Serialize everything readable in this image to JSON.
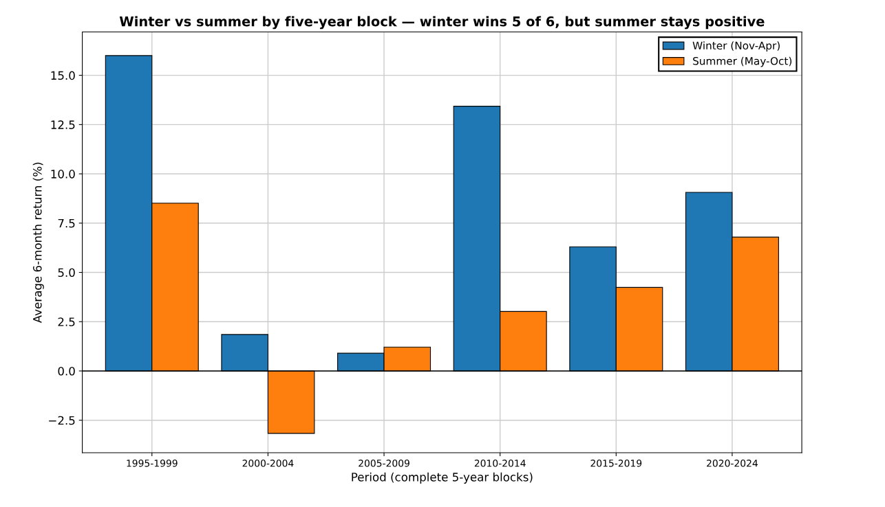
{
  "chart_data": {
    "type": "bar",
    "title": "Winter vs summer by five-year block — winter wins 5 of 6, but summer stays positive",
    "xlabel": "Period (complete 5-year blocks)",
    "ylabel": "Average 6-month return (%)",
    "categories": [
      "1995-1999",
      "2000-2004",
      "2005-2009",
      "2010-2014",
      "2015-2019",
      "2020-2024"
    ],
    "series": [
      {
        "name": "Winter (Nov-Apr)",
        "color": "#1f77b4",
        "values": [
          16.0,
          1.85,
          0.9,
          13.43,
          6.3,
          9.06
        ]
      },
      {
        "name": "Summer (May-Oct)",
        "color": "#ff7f0e",
        "values": [
          8.51,
          -3.17,
          1.21,
          3.02,
          4.24,
          6.79
        ]
      }
    ],
    "ylim": [
      -4.15,
      17.2
    ],
    "yticks": [
      {
        "value": -2.5,
        "label": "−2.5"
      },
      {
        "value": 0,
        "label": "0.0"
      },
      {
        "value": 2.5,
        "label": "2.5"
      },
      {
        "value": 5,
        "label": "5.0"
      },
      {
        "value": 7.5,
        "label": "7.5"
      },
      {
        "value": 10,
        "label": "10.0"
      },
      {
        "value": 12.5,
        "label": "12.5"
      },
      {
        "value": 15,
        "label": "15.0"
      }
    ],
    "ref_lines": [
      {
        "axis": "y",
        "value": 0,
        "color": "#000000"
      }
    ],
    "grid": true,
    "legend": "upper right"
  }
}
